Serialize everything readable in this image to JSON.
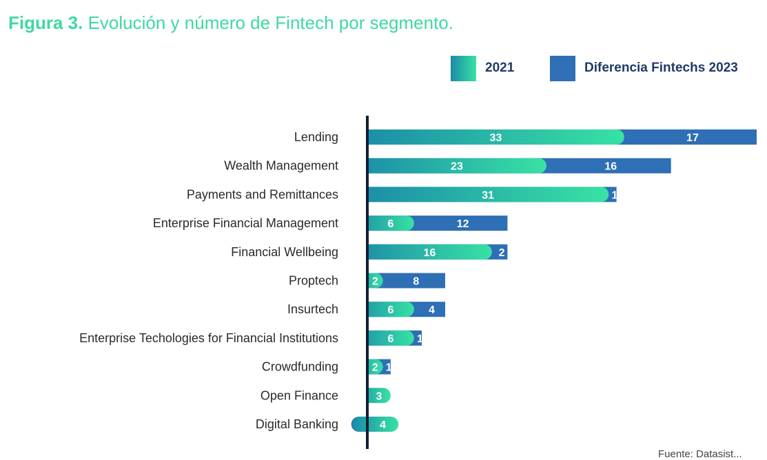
{
  "header": {
    "figure_label": "Figura 3.",
    "figure_title": "Evolución y número de Fintech por segmento."
  },
  "legend": {
    "items": [
      {
        "label": "2021",
        "color": "#2ec4a0"
      },
      {
        "label": "Diferencia Fintechs 2023",
        "color": "#2e6fb5"
      }
    ]
  },
  "footer": {
    "source_text": "Fuente: Datasist..."
  },
  "colors": {
    "gradient_start": "#1a8aa8",
    "gradient_end": "#38e2a4",
    "difference": "#2e6fb5",
    "axis": "#111f33",
    "label_text": "#2a2a2a",
    "title": "#3fd9a0"
  },
  "chart_data": {
    "type": "bar",
    "orientation": "horizontal",
    "stacked": true,
    "categories": [
      "Lending",
      "Wealth Management",
      "Payments and Remittances",
      "Enterprise Financial Management",
      "Financial Wellbeing",
      "Proptech",
      "Insurtech",
      "Enterprise Techologies for Financial Institutions",
      "Crowdfunding",
      "Open Finance",
      "Digital Banking"
    ],
    "series": [
      {
        "name": "2021",
        "values": [
          33,
          23,
          31,
          6,
          16,
          2,
          6,
          6,
          2,
          3,
          4
        ]
      },
      {
        "name": "Diferencia Fintechs 2023",
        "values": [
          17,
          16,
          1,
          12,
          2,
          8,
          4,
          1,
          1,
          0,
          -1
        ]
      }
    ],
    "data_labels": true,
    "legend_position": "top-right",
    "grid": false,
    "title": "",
    "xlabel": "",
    "ylabel": ""
  }
}
